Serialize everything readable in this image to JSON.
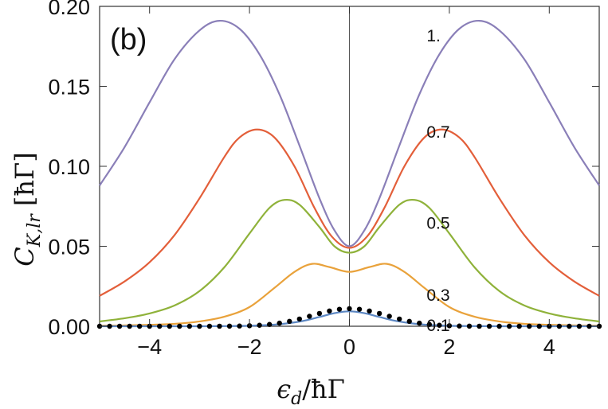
{
  "panel_label": "(b)",
  "chart_data": {
    "type": "line",
    "title": "",
    "xlabel": "ε_d/ħΓ",
    "ylabel": "C_K,lr [ħΓ]",
    "xlim": [
      -5,
      5
    ],
    "ylim": [
      0,
      0.2
    ],
    "x_ticks": [
      "−4",
      "−2",
      "0",
      "2",
      "4"
    ],
    "x_tick_values": [
      -4,
      -2,
      0,
      2,
      4
    ],
    "y_ticks": [
      "0.00",
      "0.05",
      "0.10",
      "0.15",
      "0.20"
    ],
    "y_tick_values": [
      0,
      0.05,
      0.1,
      0.15,
      0.2
    ],
    "grid": false,
    "vertical_line_x": 0,
    "series": [
      {
        "label": "1.",
        "color": "#8a7fb8",
        "x": [
          -5,
          -4.5,
          -4,
          -3.5,
          -3,
          -2.6,
          -2.2,
          -1.8,
          -1.4,
          -1,
          -0.6,
          -0.3,
          0,
          0.3,
          0.6,
          1,
          1.4,
          1.8,
          2.2,
          2.6,
          3,
          3.5,
          4,
          4.5,
          5
        ],
        "y": [
          0.088,
          0.112,
          0.14,
          0.167,
          0.185,
          0.191,
          0.186,
          0.17,
          0.145,
          0.113,
          0.08,
          0.06,
          0.05,
          0.06,
          0.08,
          0.113,
          0.145,
          0.17,
          0.186,
          0.191,
          0.185,
          0.167,
          0.14,
          0.112,
          0.088
        ]
      },
      {
        "label": "0.7",
        "color": "#e35f3a",
        "x": [
          -5,
          -4.5,
          -4,
          -3.5,
          -3,
          -2.5,
          -2.2,
          -1.85,
          -1.5,
          -1.1,
          -0.7,
          -0.35,
          0,
          0.35,
          0.7,
          1.1,
          1.5,
          1.85,
          2.2,
          2.5,
          3,
          3.5,
          4,
          4.5,
          5
        ],
        "y": [
          0.019,
          0.028,
          0.04,
          0.057,
          0.08,
          0.106,
          0.118,
          0.123,
          0.118,
          0.1,
          0.074,
          0.056,
          0.049,
          0.056,
          0.074,
          0.1,
          0.118,
          0.123,
          0.118,
          0.106,
          0.08,
          0.057,
          0.04,
          0.028,
          0.019
        ]
      },
      {
        "label": "0.5",
        "color": "#8fb23a",
        "x": [
          -5,
          -4.5,
          -4,
          -3.5,
          -3,
          -2.5,
          -2,
          -1.6,
          -1.3,
          -1,
          -0.6,
          -0.3,
          0,
          0.3,
          0.6,
          1,
          1.3,
          1.6,
          2,
          2.5,
          3,
          3.5,
          4,
          4.5,
          5
        ],
        "y": [
          0.003,
          0.005,
          0.008,
          0.013,
          0.022,
          0.037,
          0.058,
          0.074,
          0.079,
          0.076,
          0.062,
          0.05,
          0.046,
          0.05,
          0.062,
          0.076,
          0.079,
          0.074,
          0.058,
          0.037,
          0.022,
          0.013,
          0.008,
          0.005,
          0.003
        ]
      },
      {
        "label": "0.3",
        "color": "#e9a23b",
        "x": [
          -5,
          -4.5,
          -4,
          -3.5,
          -3,
          -2.5,
          -2,
          -1.5,
          -1.1,
          -0.75,
          -0.4,
          0,
          0.4,
          0.75,
          1.1,
          1.5,
          2,
          2.5,
          3,
          3.5,
          4,
          4.5,
          5
        ],
        "y": [
          0.0003,
          0.0005,
          0.0009,
          0.0015,
          0.003,
          0.006,
          0.012,
          0.024,
          0.034,
          0.039,
          0.037,
          0.034,
          0.037,
          0.039,
          0.034,
          0.024,
          0.012,
          0.006,
          0.003,
          0.0015,
          0.0009,
          0.0005,
          0.0003
        ]
      },
      {
        "label": "0.1",
        "color": "#5b86c2",
        "x": [
          -5,
          -4,
          -3,
          -2.5,
          -2,
          -1.5,
          -1.2,
          -0.9,
          -0.6,
          -0.3,
          0,
          0.3,
          0.6,
          0.9,
          1.2,
          1.5,
          2,
          2.5,
          3,
          4,
          5
        ],
        "y": [
          0,
          0,
          0,
          0.0001,
          0.0003,
          0.001,
          0.002,
          0.0035,
          0.0058,
          0.0082,
          0.0093,
          0.0082,
          0.0058,
          0.0035,
          0.002,
          0.001,
          0.0003,
          0.0001,
          0,
          0,
          0
        ]
      }
    ],
    "dotted_series": {
      "color": "#000000",
      "x_start": -5,
      "x_end": 5,
      "count": 51,
      "peak": 0.011,
      "width": 0.75
    },
    "curve_label_positions_x": [
      1.8,
      1.8,
      1.8,
      1.8,
      1.8
    ],
    "curve_label_values_y": [
      0.182,
      0.122,
      0.065,
      0.02,
      0.001
    ]
  }
}
